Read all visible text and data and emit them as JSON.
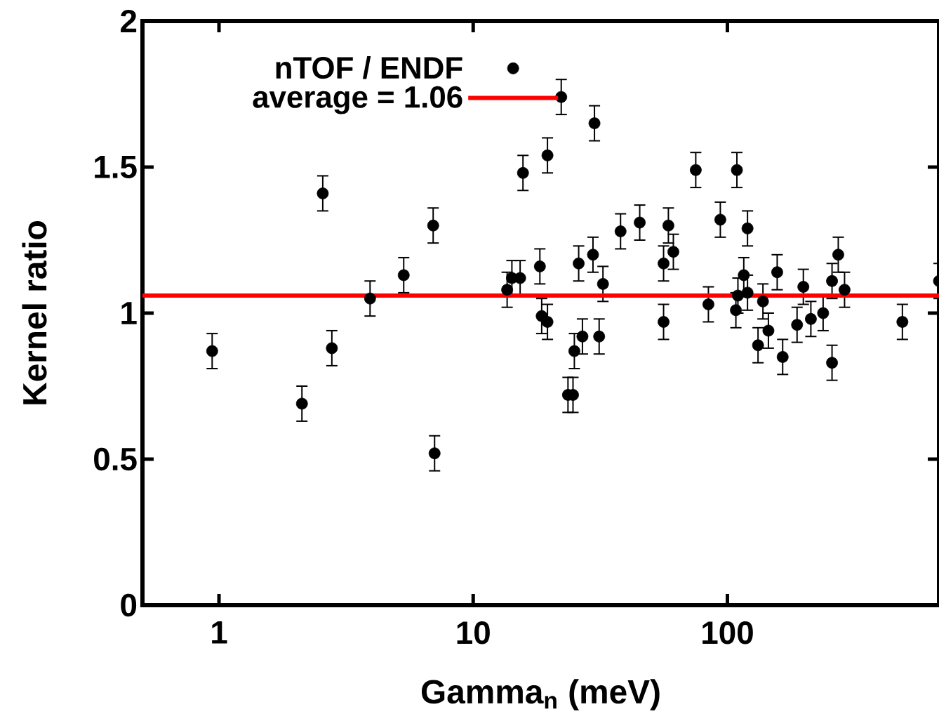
{
  "chart_data": {
    "type": "scatter",
    "xlabel": "Gamma$_{n}$ (meV)",
    "ylabel": "Kernel ratio",
    "log": "x",
    "legend": "top left",
    "marker": "circle",
    "xlim": [
      0.5,
      680
    ],
    "ylim": [
      0,
      2
    ],
    "xticks": [
      1,
      10,
      100
    ],
    "yticks": [
      0,
      0.5,
      1,
      1.5,
      2
    ],
    "ref_lines": [
      {
        "axis": "y",
        "value": 1.06,
        "label": "average = 1.06",
        "color": "#ff0000"
      }
    ],
    "series": [
      {
        "name": "nTOF / ENDF",
        "color": "#000000",
        "x": [
          0.94,
          2.12,
          2.56,
          2.78,
          3.93,
          5.33,
          6.96,
          7.05,
          13.6,
          14.2,
          15.3,
          15.7,
          18.3,
          18.6,
          19.6,
          19.6,
          22.2,
          23.6,
          24.7,
          25.0,
          26.0,
          26.9,
          30.0,
          29.6,
          31.3,
          32.4,
          38.0,
          45.2,
          56.1,
          56.1,
          58.6,
          61.3,
          75.1,
          84.2,
          93.8,
          108,
          109,
          120,
          116,
          110,
          120,
          138,
          145,
          132,
          157,
          165,
          199,
          188,
          213,
          238,
          258,
          258,
          273,
          289,
          488,
          680
        ],
        "values": [
          0.87,
          0.69,
          1.41,
          0.88,
          1.05,
          1.13,
          1.3,
          0.52,
          1.08,
          1.12,
          1.12,
          1.48,
          1.16,
          0.99,
          1.54,
          0.97,
          1.74,
          0.72,
          0.72,
          0.87,
          1.17,
          0.92,
          1.65,
          1.2,
          0.92,
          1.1,
          1.28,
          1.31,
          1.17,
          0.97,
          1.3,
          1.21,
          1.49,
          1.03,
          1.32,
          1.01,
          1.49,
          1.29,
          1.13,
          1.06,
          1.07,
          1.04,
          0.94,
          0.89,
          1.14,
          0.85,
          1.09,
          0.96,
          0.98,
          1.0,
          1.11,
          0.83,
          1.2,
          1.08,
          0.97,
          1.11
        ],
        "errors": [
          0.06,
          0.06,
          0.06,
          0.06,
          0.06,
          0.06,
          0.06,
          0.06,
          0.06,
          0.06,
          0.06,
          0.06,
          0.06,
          0.06,
          0.06,
          0.06,
          0.06,
          0.06,
          0.06,
          0.06,
          0.06,
          0.06,
          0.06,
          0.06,
          0.06,
          0.06,
          0.06,
          0.06,
          0.06,
          0.06,
          0.06,
          0.06,
          0.06,
          0.06,
          0.06,
          0.06,
          0.06,
          0.06,
          0.06,
          0.06,
          0.06,
          0.06,
          0.06,
          0.06,
          0.06,
          0.06,
          0.06,
          0.06,
          0.06,
          0.06,
          0.06,
          0.06,
          0.06,
          0.06,
          0.06,
          0.06
        ]
      }
    ]
  }
}
